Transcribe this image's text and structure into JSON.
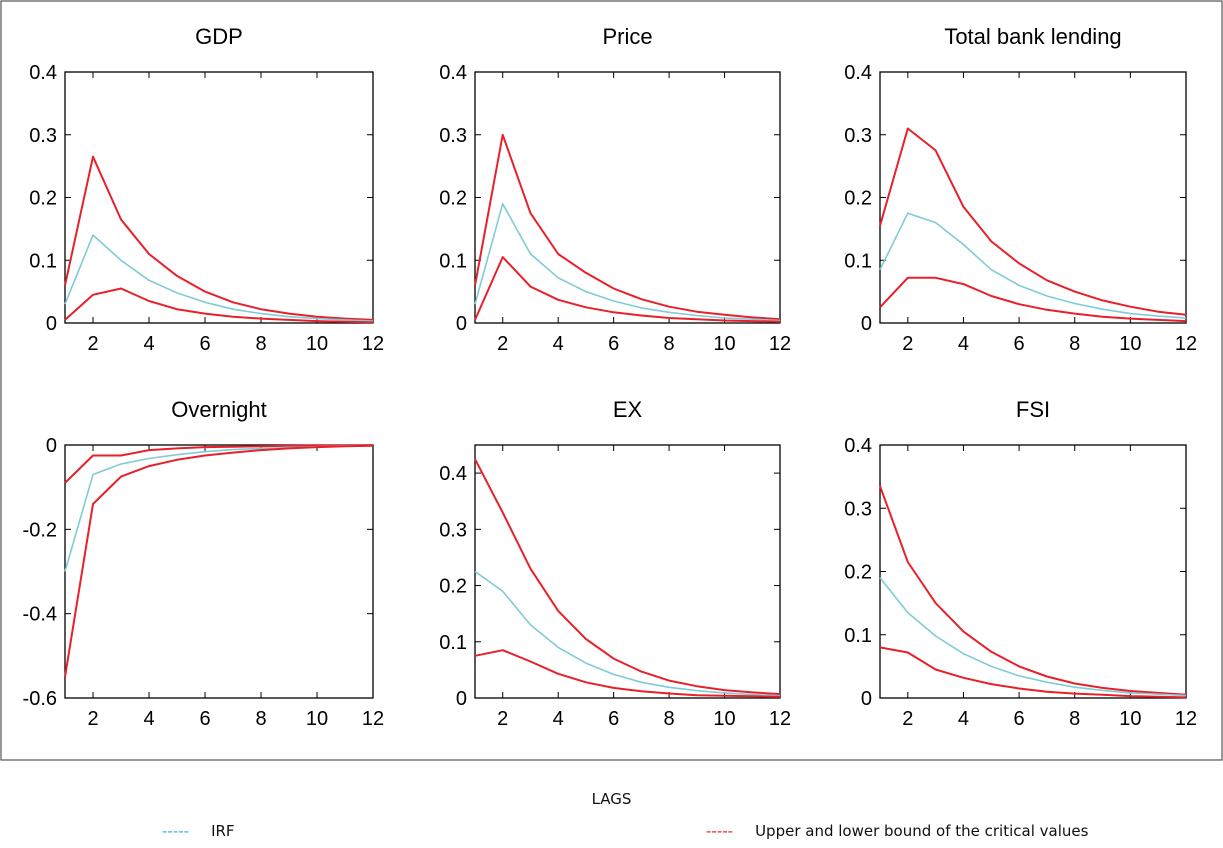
{
  "chart_data": [
    {
      "type": "line",
      "title": "GDP",
      "x": [
        1,
        2,
        3,
        4,
        5,
        6,
        7,
        8,
        9,
        10,
        11,
        12
      ],
      "ylim": [
        0,
        0.4
      ],
      "yticks": [
        "0",
        "0.1",
        "0.2",
        "0.3",
        "0.4"
      ],
      "ytick_values": [
        0,
        0.1,
        0.2,
        0.3,
        0.4
      ],
      "xticks": [
        "2",
        "4",
        "6",
        "8",
        "10",
        "12"
      ],
      "xtick_values": [
        2,
        4,
        6,
        8,
        10,
        12
      ],
      "series": [
        {
          "role": "upper",
          "values": [
            0.06,
            0.265,
            0.165,
            0.11,
            0.075,
            0.05,
            0.033,
            0.022,
            0.015,
            0.01,
            0.007,
            0.005
          ]
        },
        {
          "role": "irf",
          "values": [
            0.03,
            0.14,
            0.1,
            0.068,
            0.048,
            0.033,
            0.022,
            0.015,
            0.01,
            0.007,
            0.005,
            0.003
          ]
        },
        {
          "role": "lower",
          "values": [
            0.005,
            0.045,
            0.055,
            0.035,
            0.022,
            0.015,
            0.01,
            0.007,
            0.005,
            0.003,
            0.002,
            0.001
          ]
        }
      ]
    },
    {
      "type": "line",
      "title": "Price",
      "x": [
        1,
        2,
        3,
        4,
        5,
        6,
        7,
        8,
        9,
        10,
        11,
        12
      ],
      "ylim": [
        0,
        0.4
      ],
      "yticks": [
        "0",
        "0.1",
        "0.2",
        "0.3",
        "0.4"
      ],
      "ytick_values": [
        0,
        0.1,
        0.2,
        0.3,
        0.4
      ],
      "xticks": [
        "2",
        "4",
        "6",
        "8",
        "10",
        "12"
      ],
      "xtick_values": [
        2,
        4,
        6,
        8,
        10,
        12
      ],
      "series": [
        {
          "role": "upper",
          "values": [
            0.06,
            0.3,
            0.175,
            0.11,
            0.08,
            0.055,
            0.038,
            0.026,
            0.018,
            0.013,
            0.009,
            0.006
          ]
        },
        {
          "role": "irf",
          "values": [
            0.03,
            0.19,
            0.11,
            0.072,
            0.05,
            0.035,
            0.024,
            0.017,
            0.012,
            0.008,
            0.006,
            0.004
          ]
        },
        {
          "role": "lower",
          "values": [
            0.005,
            0.105,
            0.058,
            0.037,
            0.025,
            0.017,
            0.012,
            0.008,
            0.006,
            0.004,
            0.003,
            0.002
          ]
        }
      ]
    },
    {
      "type": "line",
      "title": "Total bank lending",
      "x": [
        1,
        2,
        3,
        4,
        5,
        6,
        7,
        8,
        9,
        10,
        11,
        12
      ],
      "ylim": [
        0,
        0.4
      ],
      "yticks": [
        "0",
        "0.1",
        "0.2",
        "0.3",
        "0.4"
      ],
      "ytick_values": [
        0,
        0.1,
        0.2,
        0.3,
        0.4
      ],
      "xticks": [
        "2",
        "4",
        "6",
        "8",
        "10",
        "12"
      ],
      "xtick_values": [
        2,
        4,
        6,
        8,
        10,
        12
      ],
      "series": [
        {
          "role": "upper",
          "values": [
            0.155,
            0.31,
            0.275,
            0.185,
            0.13,
            0.095,
            0.068,
            0.05,
            0.036,
            0.026,
            0.018,
            0.013
          ]
        },
        {
          "role": "irf",
          "values": [
            0.085,
            0.175,
            0.16,
            0.125,
            0.085,
            0.06,
            0.043,
            0.031,
            0.022,
            0.015,
            0.011,
            0.008
          ]
        },
        {
          "role": "lower",
          "values": [
            0.025,
            0.072,
            0.072,
            0.062,
            0.043,
            0.03,
            0.021,
            0.015,
            0.01,
            0.007,
            0.005,
            0.003
          ]
        }
      ]
    },
    {
      "type": "line",
      "title": "Overnight",
      "x": [
        1,
        2,
        3,
        4,
        5,
        6,
        7,
        8,
        9,
        10,
        11,
        12
      ],
      "ylim": [
        -0.6,
        0
      ],
      "yticks": [
        "-0.6",
        "-0.4",
        "-0.2",
        "0"
      ],
      "ytick_values": [
        -0.6,
        -0.4,
        -0.2,
        0
      ],
      "xticks": [
        "2",
        "4",
        "6",
        "8",
        "10",
        "12"
      ],
      "xtick_values": [
        2,
        4,
        6,
        8,
        10,
        12
      ],
      "series": [
        {
          "role": "upper",
          "values": [
            -0.09,
            -0.025,
            -0.025,
            -0.012,
            -0.008,
            -0.005,
            -0.004,
            -0.003,
            -0.002,
            -0.001,
            -0.001,
            0
          ]
        },
        {
          "role": "irf",
          "values": [
            -0.3,
            -0.07,
            -0.045,
            -0.032,
            -0.023,
            -0.016,
            -0.011,
            -0.008,
            -0.006,
            -0.004,
            -0.002,
            -0.001
          ]
        },
        {
          "role": "lower",
          "values": [
            -0.55,
            -0.14,
            -0.075,
            -0.05,
            -0.035,
            -0.025,
            -0.018,
            -0.012,
            -0.008,
            -0.005,
            -0.003,
            -0.002
          ]
        }
      ]
    },
    {
      "type": "line",
      "title": "EX",
      "x": [
        1,
        2,
        3,
        4,
        5,
        6,
        7,
        8,
        9,
        10,
        11,
        12
      ],
      "ylim": [
        0,
        0.45
      ],
      "yticks": [
        "0",
        "0.1",
        "0.2",
        "0.3",
        "0.4"
      ],
      "ytick_values": [
        0,
        0.1,
        0.2,
        0.3,
        0.4
      ],
      "xticks": [
        "2",
        "4",
        "6",
        "8",
        "10",
        "12"
      ],
      "xtick_values": [
        2,
        4,
        6,
        8,
        10,
        12
      ],
      "series": [
        {
          "role": "upper",
          "values": [
            0.425,
            0.33,
            0.23,
            0.155,
            0.105,
            0.07,
            0.047,
            0.031,
            0.021,
            0.014,
            0.01,
            0.007
          ]
        },
        {
          "role": "irf",
          "values": [
            0.225,
            0.19,
            0.13,
            0.09,
            0.062,
            0.042,
            0.028,
            0.019,
            0.013,
            0.009,
            0.006,
            0.004
          ]
        },
        {
          "role": "lower",
          "values": [
            0.075,
            0.085,
            0.065,
            0.043,
            0.028,
            0.018,
            0.012,
            0.008,
            0.005,
            0.004,
            0.003,
            0.002
          ]
        }
      ]
    },
    {
      "type": "line",
      "title": "FSI",
      "x": [
        1,
        2,
        3,
        4,
        5,
        6,
        7,
        8,
        9,
        10,
        11,
        12
      ],
      "ylim": [
        0,
        0.4
      ],
      "yticks": [
        "0",
        "0.1",
        "0.2",
        "0.3",
        "0.4"
      ],
      "ytick_values": [
        0,
        0.1,
        0.2,
        0.3,
        0.4
      ],
      "xticks": [
        "2",
        "4",
        "6",
        "8",
        "10",
        "12"
      ],
      "xtick_values": [
        2,
        4,
        6,
        8,
        10,
        12
      ],
      "series": [
        {
          "role": "upper",
          "values": [
            0.335,
            0.215,
            0.15,
            0.105,
            0.073,
            0.05,
            0.034,
            0.023,
            0.016,
            0.011,
            0.008,
            0.005
          ]
        },
        {
          "role": "irf",
          "values": [
            0.19,
            0.135,
            0.098,
            0.07,
            0.05,
            0.035,
            0.025,
            0.017,
            0.012,
            0.008,
            0.006,
            0.004
          ]
        },
        {
          "role": "lower",
          "values": [
            0.08,
            0.072,
            0.045,
            0.032,
            0.022,
            0.015,
            0.01,
            0.007,
            0.005,
            0.003,
            0.002,
            0.001
          ]
        }
      ]
    }
  ],
  "xlabel": "LAGS",
  "legend": {
    "irf": {
      "dash": "-----",
      "label": "IRF",
      "color": "#33aee6"
    },
    "bounds": {
      "dash": "-----",
      "label": "Upper and lower bound of the critical values",
      "color": "#e8202a"
    }
  },
  "colors": {
    "upper": "#e8202a",
    "lower": "#e8202a",
    "irf": "#7fcbd6",
    "axis": "#000000"
  }
}
